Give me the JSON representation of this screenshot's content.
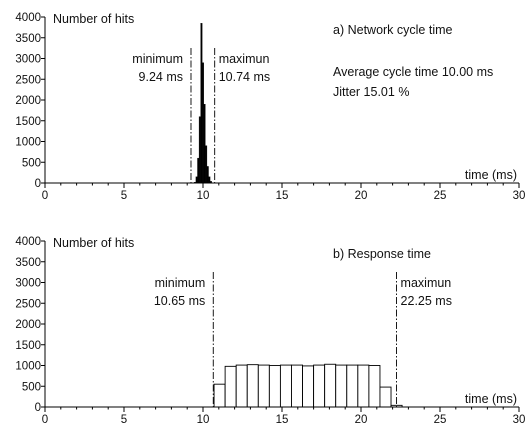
{
  "chart_data": [
    {
      "type": "bar",
      "title": "a) Network cycle time",
      "ylabel": "Number of hits",
      "xlabel": "time (ms)",
      "xlim": [
        0,
        30
      ],
      "ylim": [
        0,
        4000
      ],
      "xticks": [
        0,
        5,
        10,
        15,
        20,
        25,
        30
      ],
      "xtick_labels": [
        "0",
        "5",
        "10",
        "15",
        "20",
        "25",
        "30"
      ],
      "yticks": [
        0,
        500,
        1000,
        1500,
        2000,
        2500,
        3000,
        3500,
        4000
      ],
      "ytick_labels": [
        "0",
        "500",
        "1000",
        "1500",
        "2000",
        "2500",
        "3000",
        "3500",
        "4000"
      ],
      "bar_fill": "#000000",
      "bin_width": 0.1,
      "bins": [
        {
          "x": 9.5,
          "value": 20
        },
        {
          "x": 9.6,
          "value": 150
        },
        {
          "x": 9.7,
          "value": 600
        },
        {
          "x": 9.8,
          "value": 1600
        },
        {
          "x": 9.9,
          "value": 3850
        },
        {
          "x": 10.0,
          "value": 2900
        },
        {
          "x": 10.1,
          "value": 1900
        },
        {
          "x": 10.2,
          "value": 900
        },
        {
          "x": 10.3,
          "value": 400
        },
        {
          "x": 10.4,
          "value": 150
        },
        {
          "x": 10.5,
          "value": 40
        }
      ],
      "markers": [
        {
          "x": 9.24,
          "name": "minimum",
          "value_label": "9.24 ms",
          "side": "left"
        },
        {
          "x": 10.74,
          "name": "maximun",
          "value_label": "10.74 ms",
          "side": "right"
        }
      ],
      "notes": [
        "Average cycle time 10.00 ms",
        "Jitter 15.01 %"
      ]
    },
    {
      "type": "bar",
      "title": "b) Response time",
      "ylabel": "Number of hits",
      "xlabel": "time (ms)",
      "xlim": [
        0,
        30
      ],
      "ylim": [
        0,
        4000
      ],
      "xticks": [
        0,
        5,
        10,
        15,
        20,
        25,
        30
      ],
      "xtick_labels": [
        "0",
        "5",
        "10",
        "15",
        "20",
        "25",
        "30"
      ],
      "yticks": [
        0,
        500,
        1000,
        1500,
        2000,
        2500,
        3000,
        3500,
        4000
      ],
      "ytick_labels": [
        "0",
        "500",
        "1000",
        "1500",
        "2000",
        "2500",
        "3000",
        "3500",
        "4000"
      ],
      "bar_fill": "#ffffff",
      "bin_width": 0.7,
      "bins": [
        {
          "x": 11.05,
          "value": 550
        },
        {
          "x": 11.75,
          "value": 980
        },
        {
          "x": 12.45,
          "value": 1010
        },
        {
          "x": 13.15,
          "value": 1020
        },
        {
          "x": 13.85,
          "value": 1010
        },
        {
          "x": 14.55,
          "value": 1000
        },
        {
          "x": 15.25,
          "value": 1010
        },
        {
          "x": 15.95,
          "value": 1010
        },
        {
          "x": 16.65,
          "value": 990
        },
        {
          "x": 17.35,
          "value": 1010
        },
        {
          "x": 18.05,
          "value": 1030
        },
        {
          "x": 18.75,
          "value": 1010
        },
        {
          "x": 19.45,
          "value": 1010
        },
        {
          "x": 20.15,
          "value": 1010
        },
        {
          "x": 20.85,
          "value": 1000
        },
        {
          "x": 21.55,
          "value": 480
        },
        {
          "x": 22.25,
          "value": 40
        }
      ],
      "markers": [
        {
          "x": 10.65,
          "name": "minimum",
          "value_label": "10.65 ms",
          "side": "left"
        },
        {
          "x": 22.25,
          "name": "maximun",
          "value_label": "22.25 ms",
          "side": "right"
        }
      ],
      "notes": []
    }
  ]
}
